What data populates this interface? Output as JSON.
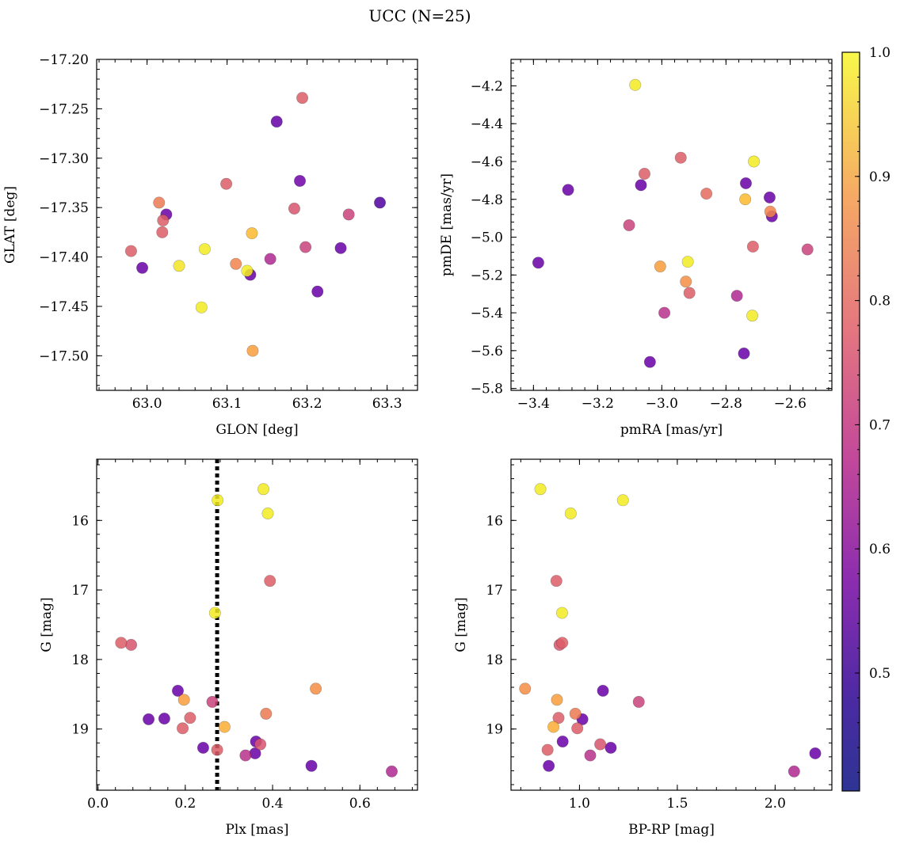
{
  "figure": {
    "title": "UCC (N=25)"
  },
  "colormap": {
    "name": "plasma",
    "range": [
      0.405,
      1.0
    ],
    "ticks": [
      "0.5",
      "0.6",
      "0.7",
      "0.8",
      "0.9",
      "1.0"
    ]
  },
  "chart_data": [
    {
      "id": "p1",
      "type": "scatter",
      "xlabel": "GLON [deg]",
      "ylabel": "GLAT [deg]",
      "xlim": [
        62.937,
        63.338
      ],
      "ylim": [
        -17.535,
        -17.2
      ],
      "xticks": [
        "63.0",
        "63.1",
        "63.2",
        "63.3"
      ],
      "yticks": [
        "−17.20",
        "−17.25",
        "−17.30",
        "−17.35",
        "−17.40",
        "−17.45",
        "−17.50"
      ],
      "points": [
        {
          "x": 63.194,
          "y": -17.239,
          "c": 0.72
        },
        {
          "x": 63.162,
          "y": -17.263,
          "c": 0.46
        },
        {
          "x": 63.191,
          "y": -17.323,
          "c": 0.48
        },
        {
          "x": 63.099,
          "y": -17.326,
          "c": 0.72
        },
        {
          "x": 63.015,
          "y": -17.345,
          "c": 0.78
        },
        {
          "x": 63.291,
          "y": -17.345,
          "c": 0.43
        },
        {
          "x": 63.184,
          "y": -17.351,
          "c": 0.7
        },
        {
          "x": 63.252,
          "y": -17.357,
          "c": 0.66
        },
        {
          "x": 63.024,
          "y": -17.357,
          "c": 0.47
        },
        {
          "x": 63.02,
          "y": -17.363,
          "c": 0.72
        },
        {
          "x": 63.019,
          "y": -17.375,
          "c": 0.72
        },
        {
          "x": 63.131,
          "y": -17.376,
          "c": 0.9
        },
        {
          "x": 63.072,
          "y": -17.392,
          "c": 0.98
        },
        {
          "x": 62.98,
          "y": -17.394,
          "c": 0.72
        },
        {
          "x": 63.198,
          "y": -17.39,
          "c": 0.66
        },
        {
          "x": 63.242,
          "y": -17.391,
          "c": 0.47
        },
        {
          "x": 63.154,
          "y": -17.402,
          "c": 0.6
        },
        {
          "x": 63.111,
          "y": -17.407,
          "c": 0.8
        },
        {
          "x": 63.04,
          "y": -17.409,
          "c": 0.97
        },
        {
          "x": 62.994,
          "y": -17.411,
          "c": 0.47
        },
        {
          "x": 63.125,
          "y": -17.414,
          "c": 0.98
        },
        {
          "x": 63.129,
          "y": -17.418,
          "c": 0.47
        },
        {
          "x": 63.213,
          "y": -17.435,
          "c": 0.47
        },
        {
          "x": 63.068,
          "y": -17.451,
          "c": 0.98
        },
        {
          "x": 63.132,
          "y": -17.495,
          "c": 0.85
        }
      ]
    },
    {
      "id": "p2",
      "type": "scatter",
      "xlabel": "pmRA [mas/yr]",
      "ylabel": "pmDE [mas/yr]",
      "xlim": [
        -3.47,
        -2.47
      ],
      "ylim": [
        -5.81,
        -4.06
      ],
      "xticks": [
        "−3.4",
        "−3.2",
        "−3.0",
        "−2.8",
        "−2.6"
      ],
      "yticks": [
        "−4.2",
        "−4.4",
        "−4.6",
        "−4.8",
        "−5.0",
        "−5.2",
        "−5.4",
        "−5.6",
        "−5.8"
      ],
      "points": [
        {
          "x": -3.083,
          "y": -4.195,
          "c": 0.98
        },
        {
          "x": -2.941,
          "y": -4.58,
          "c": 0.72
        },
        {
          "x": -2.713,
          "y": -4.6,
          "c": 0.98
        },
        {
          "x": -3.054,
          "y": -4.665,
          "c": 0.72
        },
        {
          "x": -2.738,
          "y": -4.715,
          "c": 0.47
        },
        {
          "x": -3.065,
          "y": -4.725,
          "c": 0.47
        },
        {
          "x": -3.292,
          "y": -4.75,
          "c": 0.47
        },
        {
          "x": -2.861,
          "y": -4.77,
          "c": 0.75
        },
        {
          "x": -2.74,
          "y": -4.8,
          "c": 0.9
        },
        {
          "x": -2.664,
          "y": -4.79,
          "c": 0.47
        },
        {
          "x": -2.662,
          "y": -4.865,
          "c": 0.8
        },
        {
          "x": -2.657,
          "y": -4.89,
          "c": 0.47
        },
        {
          "x": -3.102,
          "y": -4.937,
          "c": 0.66
        },
        {
          "x": -2.716,
          "y": -5.05,
          "c": 0.72
        },
        {
          "x": -2.546,
          "y": -5.065,
          "c": 0.66
        },
        {
          "x": -3.385,
          "y": -5.135,
          "c": 0.47
        },
        {
          "x": -2.919,
          "y": -5.13,
          "c": 0.98
        },
        {
          "x": -3.005,
          "y": -5.155,
          "c": 0.85
        },
        {
          "x": -2.925,
          "y": -5.235,
          "c": 0.82
        },
        {
          "x": -2.914,
          "y": -5.295,
          "c": 0.72
        },
        {
          "x": -2.766,
          "y": -5.31,
          "c": 0.6
        },
        {
          "x": -2.992,
          "y": -5.4,
          "c": 0.62
        },
        {
          "x": -2.718,
          "y": -5.415,
          "c": 0.98
        },
        {
          "x": -2.744,
          "y": -5.615,
          "c": 0.47
        },
        {
          "x": -3.037,
          "y": -5.66,
          "c": 0.47
        }
      ]
    },
    {
      "id": "p3",
      "type": "scatter",
      "xlabel": "Plx [mas]",
      "ylabel": "G [mag]",
      "xlim": [
        -0.003,
        0.732
      ],
      "ylim": [
        19.88,
        15.12
      ],
      "xticks": [
        "0.0",
        "0.2",
        "0.4",
        "0.6"
      ],
      "yticks": [
        "16",
        "17",
        "18",
        "19"
      ],
      "vline": 0.273,
      "points": [
        {
          "x": 0.379,
          "y": 15.55,
          "c": 0.98
        },
        {
          "x": 0.274,
          "y": 15.71,
          "c": 0.98
        },
        {
          "x": 0.389,
          "y": 15.9,
          "c": 0.98
        },
        {
          "x": 0.394,
          "y": 16.87,
          "c": 0.72
        },
        {
          "x": 0.268,
          "y": 17.33,
          "c": 0.98
        },
        {
          "x": 0.053,
          "y": 17.76,
          "c": 0.72
        },
        {
          "x": 0.076,
          "y": 17.79,
          "c": 0.7
        },
        {
          "x": 0.499,
          "y": 18.42,
          "c": 0.82
        },
        {
          "x": 0.183,
          "y": 18.45,
          "c": 0.47
        },
        {
          "x": 0.197,
          "y": 18.58,
          "c": 0.85
        },
        {
          "x": 0.262,
          "y": 18.61,
          "c": 0.66
        },
        {
          "x": 0.385,
          "y": 18.78,
          "c": 0.78
        },
        {
          "x": 0.116,
          "y": 18.86,
          "c": 0.47
        },
        {
          "x": 0.152,
          "y": 18.85,
          "c": 0.47
        },
        {
          "x": 0.211,
          "y": 18.84,
          "c": 0.72
        },
        {
          "x": 0.29,
          "y": 18.97,
          "c": 0.88
        },
        {
          "x": 0.194,
          "y": 18.99,
          "c": 0.72
        },
        {
          "x": 0.362,
          "y": 19.18,
          "c": 0.47
        },
        {
          "x": 0.372,
          "y": 19.22,
          "c": 0.7
        },
        {
          "x": 0.241,
          "y": 19.27,
          "c": 0.47
        },
        {
          "x": 0.273,
          "y": 19.3,
          "c": 0.72
        },
        {
          "x": 0.36,
          "y": 19.35,
          "c": 0.47
        },
        {
          "x": 0.338,
          "y": 19.38,
          "c": 0.62
        },
        {
          "x": 0.489,
          "y": 19.53,
          "c": 0.47
        },
        {
          "x": 0.673,
          "y": 19.61,
          "c": 0.6
        }
      ]
    },
    {
      "id": "p4",
      "type": "scatter",
      "xlabel": "BP-RP [mag]",
      "ylabel": "G [mag]",
      "xlim": [
        0.65,
        2.29
      ],
      "ylim": [
        19.88,
        15.12
      ],
      "xticks": [
        "1.0",
        "1.5",
        "2.0"
      ],
      "yticks": [
        "16",
        "17",
        "18",
        "19"
      ],
      "points": [
        {
          "x": 0.8,
          "y": 15.55,
          "c": 0.98
        },
        {
          "x": 1.222,
          "y": 15.71,
          "c": 0.98
        },
        {
          "x": 0.955,
          "y": 15.9,
          "c": 0.98
        },
        {
          "x": 0.882,
          "y": 16.87,
          "c": 0.72
        },
        {
          "x": 0.911,
          "y": 17.33,
          "c": 0.98
        },
        {
          "x": 0.912,
          "y": 17.76,
          "c": 0.72
        },
        {
          "x": 0.898,
          "y": 17.79,
          "c": 0.7
        },
        {
          "x": 0.722,
          "y": 18.42,
          "c": 0.82
        },
        {
          "x": 1.12,
          "y": 18.45,
          "c": 0.47
        },
        {
          "x": 0.885,
          "y": 18.58,
          "c": 0.85
        },
        {
          "x": 1.303,
          "y": 18.61,
          "c": 0.66
        },
        {
          "x": 0.979,
          "y": 18.78,
          "c": 0.78
        },
        {
          "x": 0.893,
          "y": 18.84,
          "c": 0.72
        },
        {
          "x": 1.015,
          "y": 18.86,
          "c": 0.47
        },
        {
          "x": 0.867,
          "y": 18.97,
          "c": 0.88
        },
        {
          "x": 0.989,
          "y": 18.99,
          "c": 0.72
        },
        {
          "x": 0.914,
          "y": 19.18,
          "c": 0.47
        },
        {
          "x": 1.106,
          "y": 19.22,
          "c": 0.7
        },
        {
          "x": 1.16,
          "y": 19.27,
          "c": 0.47
        },
        {
          "x": 0.837,
          "y": 19.3,
          "c": 0.72
        },
        {
          "x": 2.205,
          "y": 19.35,
          "c": 0.47
        },
        {
          "x": 1.055,
          "y": 19.38,
          "c": 0.62
        },
        {
          "x": 0.843,
          "y": 19.53,
          "c": 0.47
        },
        {
          "x": 2.097,
          "y": 19.61,
          "c": 0.6
        }
      ]
    }
  ]
}
